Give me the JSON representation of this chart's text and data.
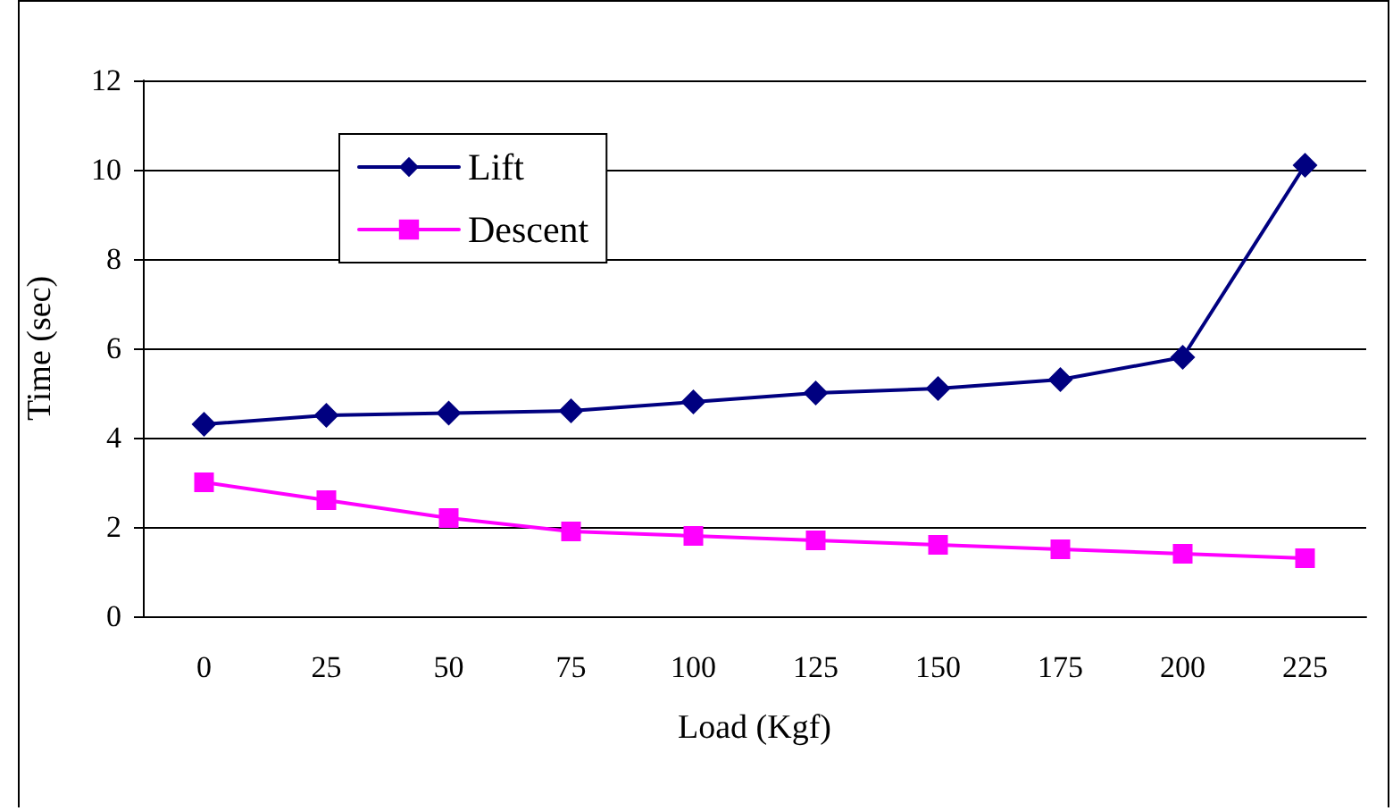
{
  "chart_data": {
    "type": "line",
    "xlabel": "Load (Kgf)",
    "ylabel": "Time (sec)",
    "categories": [
      "0",
      "25",
      "50",
      "75",
      "100",
      "125",
      "150",
      "175",
      "200",
      "225"
    ],
    "series": [
      {
        "name": "Lift",
        "color": "#000080",
        "marker": "diamond",
        "values": [
          4.3,
          4.5,
          4.55,
          4.6,
          4.8,
          5.0,
          5.1,
          5.3,
          5.8,
          10.1
        ]
      },
      {
        "name": "Descent",
        "color": "#ff00ff",
        "marker": "square",
        "values": [
          3.0,
          2.6,
          2.2,
          1.9,
          1.8,
          1.7,
          1.6,
          1.5,
          1.4,
          1.3
        ]
      }
    ],
    "ylim": [
      0,
      12
    ],
    "yticks": [
      0,
      2,
      4,
      6,
      8,
      10,
      12
    ],
    "grid": "y",
    "legend": "top left",
    "line_style": "solid"
  }
}
